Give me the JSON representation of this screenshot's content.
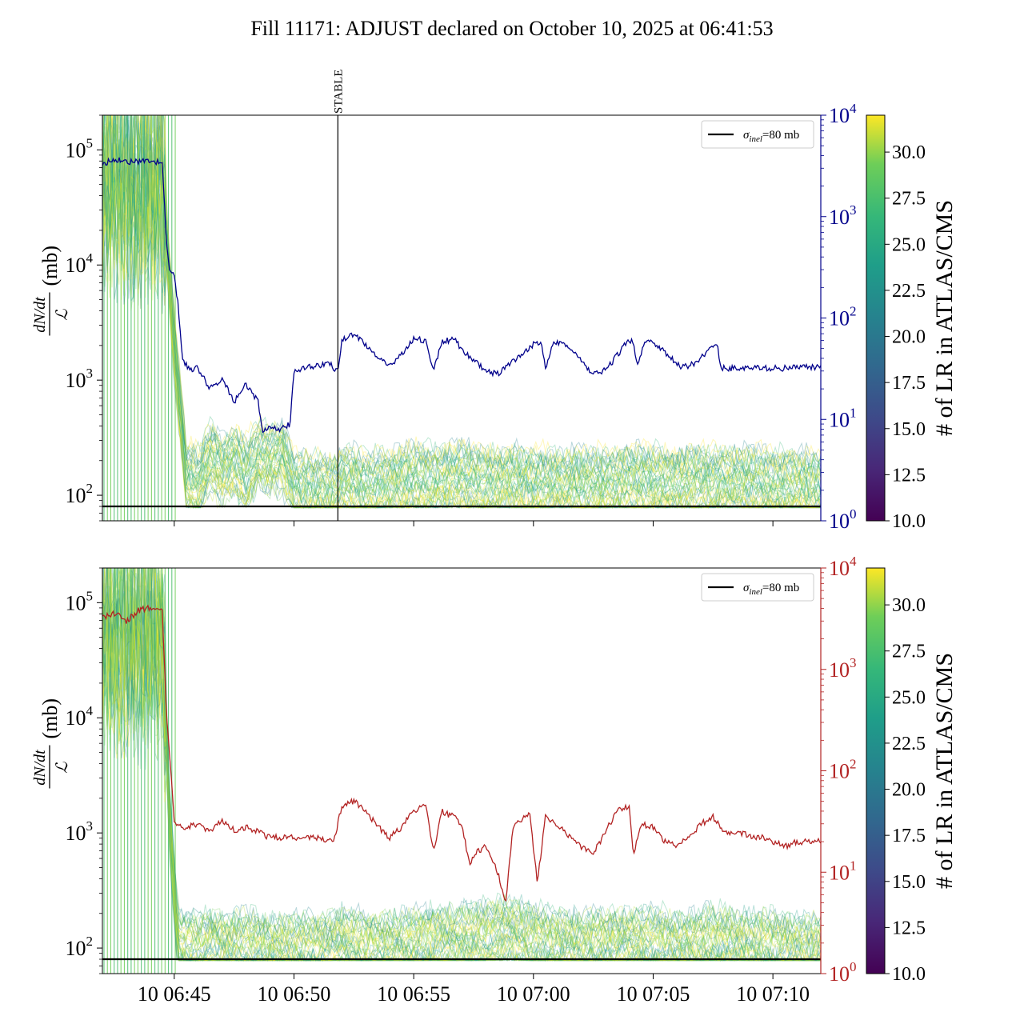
{
  "figure": {
    "title": "Fill 11171: ADJUST declared on October 10, 2025 at 06:41:53"
  },
  "chart_data": [
    {
      "type": "line",
      "panel": "top",
      "ylabel_numerator": "dN/dt",
      "ylabel_denominator": "ℒ",
      "ylabel_unit": "(mb)",
      "yscale": "log",
      "ylim": [
        60,
        200000
      ],
      "y_ticks": [
        {
          "value": 100,
          "base": "10",
          "exp": "2"
        },
        {
          "value": 1000,
          "base": "10",
          "exp": "3"
        },
        {
          "value": 10000,
          "base": "10",
          "exp": "4"
        },
        {
          "value": 100000,
          "base": "10",
          "exp": "5"
        }
      ],
      "right_axis": {
        "yscale": "log",
        "ylim": [
          1,
          10000
        ],
        "color": "#00008b",
        "ticks": [
          {
            "value": 1,
            "base": "10",
            "exp": "0"
          },
          {
            "value": 10,
            "base": "10",
            "exp": "1"
          },
          {
            "value": 100,
            "base": "10",
            "exp": "2"
          },
          {
            "value": 1000,
            "base": "10",
            "exp": "3"
          },
          {
            "value": 10000,
            "base": "10",
            "exp": "4"
          }
        ]
      },
      "x_range": [
        "06:42:00",
        "07:12:00"
      ],
      "x_ticks": [
        "06:45",
        "06:50",
        "06:55",
        "07:00",
        "07:05",
        "07:10"
      ],
      "x_tick_labels_shown": false,
      "vertical_marker": {
        "time": "06:51:50",
        "label": "STABLE"
      },
      "reference_line": {
        "value": 80,
        "label_sym": "σ",
        "label_sub": "inel",
        "label_rest": "=80 mb",
        "color": "#000000"
      },
      "legend_position": "top-right",
      "right_series": {
        "color": "#00008b",
        "points": [
          [
            "06:42:00",
            3300
          ],
          [
            "06:42:30",
            3700
          ],
          [
            "06:43:00",
            3500
          ],
          [
            "06:43:30",
            3450
          ],
          [
            "06:44:00",
            3500
          ],
          [
            "06:44:30",
            3400
          ],
          [
            "06:44:40",
            600
          ],
          [
            "06:44:50",
            270
          ],
          [
            "06:45:00",
            270
          ],
          [
            "06:45:10",
            130
          ],
          [
            "06:45:20",
            40
          ],
          [
            "06:45:40",
            30
          ],
          [
            "06:46:00",
            32
          ],
          [
            "06:46:30",
            20
          ],
          [
            "06:47:00",
            25
          ],
          [
            "06:47:30",
            15
          ],
          [
            "06:48:00",
            22
          ],
          [
            "06:48:30",
            15
          ],
          [
            "06:48:40",
            8
          ],
          [
            "06:49:00",
            8
          ],
          [
            "06:49:30",
            8
          ],
          [
            "06:49:50",
            9
          ],
          [
            "06:50:00",
            30
          ],
          [
            "06:50:30",
            33
          ],
          [
            "06:51:00",
            34
          ],
          [
            "06:51:30",
            35
          ],
          [
            "06:51:50",
            30
          ],
          [
            "06:52:00",
            60
          ],
          [
            "06:52:30",
            70
          ],
          [
            "06:53:00",
            55
          ],
          [
            "06:53:30",
            40
          ],
          [
            "06:54:00",
            33
          ],
          [
            "06:54:30",
            45
          ],
          [
            "06:55:00",
            62
          ],
          [
            "06:55:30",
            60
          ],
          [
            "06:55:50",
            30
          ],
          [
            "06:56:10",
            58
          ],
          [
            "06:56:40",
            62
          ],
          [
            "06:57:00",
            50
          ],
          [
            "06:57:30",
            38
          ],
          [
            "06:58:00",
            30
          ],
          [
            "06:58:30",
            28
          ],
          [
            "06:59:00",
            35
          ],
          [
            "06:59:30",
            42
          ],
          [
            "07:00:00",
            55
          ],
          [
            "07:00:20",
            58
          ],
          [
            "07:00:30",
            32
          ],
          [
            "07:00:50",
            60
          ],
          [
            "07:01:20",
            55
          ],
          [
            "07:01:50",
            42
          ],
          [
            "07:02:20",
            30
          ],
          [
            "07:02:50",
            28
          ],
          [
            "07:03:20",
            38
          ],
          [
            "07:03:50",
            55
          ],
          [
            "07:04:10",
            60
          ],
          [
            "07:04:20",
            35
          ],
          [
            "07:04:40",
            60
          ],
          [
            "07:05:10",
            55
          ],
          [
            "07:05:40",
            42
          ],
          [
            "07:06:10",
            32
          ],
          [
            "07:06:40",
            35
          ],
          [
            "07:07:10",
            45
          ],
          [
            "07:07:40",
            55
          ],
          [
            "07:07:50",
            32
          ],
          [
            "07:08:30",
            32
          ],
          [
            "07:09:30",
            32
          ],
          [
            "07:10:30",
            32
          ],
          [
            "07:11:30",
            33
          ],
          [
            "07:12:00",
            32
          ]
        ]
      },
      "band_series": {
        "color_by": "# of LR in ATLAS/CMS",
        "mid": [
          [
            "06:42:00",
            50000
          ],
          [
            "06:44:30",
            50000
          ],
          [
            "06:45:00",
            2000
          ],
          [
            "06:45:30",
            150
          ],
          [
            "06:46:00",
            130
          ],
          [
            "06:46:30",
            220
          ],
          [
            "06:47:00",
            160
          ],
          [
            "06:47:30",
            200
          ],
          [
            "06:48:00",
            150
          ],
          [
            "06:48:30",
            230
          ],
          [
            "06:49:00",
            200
          ],
          [
            "06:49:30",
            220
          ],
          [
            "06:50:00",
            115
          ],
          [
            "06:51:00",
            115
          ],
          [
            "06:51:50",
            110
          ],
          [
            "06:52:00",
            130
          ],
          [
            "06:53:00",
            120
          ],
          [
            "06:54:00",
            125
          ],
          [
            "06:55:00",
            135
          ],
          [
            "06:56:00",
            135
          ],
          [
            "06:57:00",
            140
          ],
          [
            "06:58:00",
            130
          ],
          [
            "06:59:00",
            130
          ],
          [
            "07:00:00",
            125
          ],
          [
            "07:01:00",
            125
          ],
          [
            "07:02:00",
            120
          ],
          [
            "07:03:00",
            125
          ],
          [
            "07:04:00",
            130
          ],
          [
            "07:05:00",
            130
          ],
          [
            "07:06:00",
            125
          ],
          [
            "07:07:00",
            130
          ],
          [
            "07:08:00",
            130
          ],
          [
            "07:09:00",
            125
          ],
          [
            "07:10:00",
            125
          ],
          [
            "07:11:00",
            120
          ],
          [
            "07:12:00",
            115
          ]
        ]
      }
    },
    {
      "type": "line",
      "panel": "bottom",
      "ylabel_numerator": "dN/dt",
      "ylabel_denominator": "ℒ",
      "ylabel_unit": "(mb)",
      "yscale": "log",
      "ylim": [
        60,
        200000
      ],
      "y_ticks": [
        {
          "value": 100,
          "base": "10",
          "exp": "2"
        },
        {
          "value": 1000,
          "base": "10",
          "exp": "3"
        },
        {
          "value": 10000,
          "base": "10",
          "exp": "4"
        },
        {
          "value": 100000,
          "base": "10",
          "exp": "5"
        }
      ],
      "right_axis": {
        "yscale": "log",
        "ylim": [
          1,
          10000
        ],
        "color": "#b22222",
        "ticks": [
          {
            "value": 1,
            "base": "10",
            "exp": "0"
          },
          {
            "value": 10,
            "base": "10",
            "exp": "1"
          },
          {
            "value": 100,
            "base": "10",
            "exp": "2"
          },
          {
            "value": 1000,
            "base": "10",
            "exp": "3"
          },
          {
            "value": 10000,
            "base": "10",
            "exp": "4"
          }
        ]
      },
      "x_range": [
        "06:42:00",
        "07:12:00"
      ],
      "x_ticks": [
        "06:45",
        "06:50",
        "06:55",
        "07:00",
        "07:05",
        "07:10"
      ],
      "x_tick_labels": [
        "10 06:45",
        "10 06:50",
        "10 06:55",
        "10 07:00",
        "10 07:05",
        "10 07:10"
      ],
      "reference_line": {
        "value": 80,
        "label_sym": "σ",
        "label_sub": "inel",
        "label_rest": "=80 mb",
        "color": "#000000"
      },
      "legend_position": "top-right",
      "right_series": {
        "color": "#b22222",
        "points": [
          [
            "06:42:00",
            3200
          ],
          [
            "06:42:30",
            3600
          ],
          [
            "06:43:00",
            3000
          ],
          [
            "06:43:30",
            3800
          ],
          [
            "06:44:00",
            4100
          ],
          [
            "06:44:30",
            3900
          ],
          [
            "06:44:40",
            400
          ],
          [
            "06:44:50",
            120
          ],
          [
            "06:45:00",
            30
          ],
          [
            "06:45:30",
            28
          ],
          [
            "06:46:00",
            30
          ],
          [
            "06:46:30",
            25
          ],
          [
            "06:47:00",
            32
          ],
          [
            "06:47:30",
            26
          ],
          [
            "06:48:00",
            28
          ],
          [
            "06:49:00",
            22
          ],
          [
            "06:50:00",
            22
          ],
          [
            "06:51:00",
            22
          ],
          [
            "06:51:40",
            20
          ],
          [
            "06:52:00",
            45
          ],
          [
            "06:52:30",
            50
          ],
          [
            "06:53:00",
            40
          ],
          [
            "06:53:30",
            28
          ],
          [
            "06:54:00",
            22
          ],
          [
            "06:54:30",
            28
          ],
          [
            "06:55:00",
            40
          ],
          [
            "06:55:30",
            45
          ],
          [
            "06:55:50",
            16
          ],
          [
            "06:56:10",
            40
          ],
          [
            "06:56:40",
            35
          ],
          [
            "06:57:00",
            30
          ],
          [
            "06:57:20",
            12
          ],
          [
            "06:57:40",
            16
          ],
          [
            "06:58:00",
            18
          ],
          [
            "06:58:30",
            10
          ],
          [
            "06:58:50",
            5
          ],
          [
            "06:59:10",
            30
          ],
          [
            "06:59:30",
            32
          ],
          [
            "06:59:50",
            38
          ],
          [
            "07:00:10",
            8
          ],
          [
            "07:00:30",
            35
          ],
          [
            "07:01:00",
            30
          ],
          [
            "07:01:30",
            22
          ],
          [
            "07:02:00",
            18
          ],
          [
            "07:02:30",
            15
          ],
          [
            "07:03:00",
            25
          ],
          [
            "07:03:30",
            40
          ],
          [
            "07:04:00",
            45
          ],
          [
            "07:04:10",
            15
          ],
          [
            "07:04:30",
            30
          ],
          [
            "07:05:00",
            28
          ],
          [
            "07:05:30",
            20
          ],
          [
            "07:06:00",
            18
          ],
          [
            "07:06:30",
            22
          ],
          [
            "07:07:00",
            30
          ],
          [
            "07:07:30",
            35
          ],
          [
            "07:08:00",
            25
          ],
          [
            "07:08:30",
            25
          ],
          [
            "07:09:00",
            23
          ],
          [
            "07:09:30",
            22
          ],
          [
            "07:10:00",
            20
          ],
          [
            "07:10:30",
            18
          ],
          [
            "07:11:00",
            20
          ],
          [
            "07:12:00",
            20
          ]
        ]
      },
      "band_series": {
        "color_by": "# of LR in ATLAS/CMS",
        "mid": [
          [
            "06:42:00",
            50000
          ],
          [
            "06:44:30",
            50000
          ],
          [
            "06:44:50",
            1000
          ],
          [
            "06:45:10",
            100
          ],
          [
            "06:46:00",
            95
          ],
          [
            "06:46:30",
            110
          ],
          [
            "06:47:00",
            100
          ],
          [
            "06:48:00",
            100
          ],
          [
            "06:49:00",
            95
          ],
          [
            "06:50:00",
            95
          ],
          [
            "06:51:00",
            95
          ],
          [
            "06:52:00",
            110
          ],
          [
            "06:53:00",
            95
          ],
          [
            "06:54:00",
            100
          ],
          [
            "06:55:00",
            105
          ],
          [
            "06:56:00",
            110
          ],
          [
            "06:57:00",
            115
          ],
          [
            "06:58:00",
            120
          ],
          [
            "06:59:00",
            140
          ],
          [
            "07:00:00",
            110
          ],
          [
            "07:01:00",
            105
          ],
          [
            "07:02:00",
            100
          ],
          [
            "07:03:00",
            105
          ],
          [
            "07:04:00",
            110
          ],
          [
            "07:05:00",
            105
          ],
          [
            "07:06:00",
            100
          ],
          [
            "07:07:00",
            105
          ],
          [
            "07:08:00",
            110
          ],
          [
            "07:09:00",
            100
          ],
          [
            "07:10:00",
            100
          ],
          [
            "07:11:00",
            95
          ],
          [
            "07:12:00",
            95
          ]
        ]
      }
    }
  ],
  "colorbar": {
    "label": "# of LR in ATLAS/CMS",
    "colormap": "viridis",
    "range": [
      10,
      32
    ],
    "ticks": [
      "10.0",
      "12.5",
      "15.0",
      "17.5",
      "20.0",
      "22.5",
      "25.0",
      "27.5",
      "30.0"
    ]
  }
}
